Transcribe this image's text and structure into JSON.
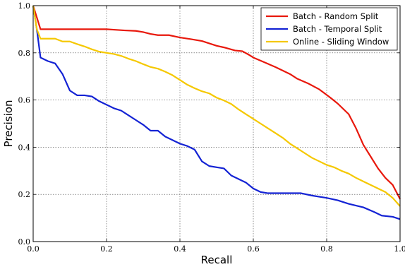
{
  "chart_data": {
    "type": "line",
    "xlabel": "Recall",
    "ylabel": "Precision",
    "xlim": [
      0.0,
      1.0
    ],
    "ylim": [
      0.0,
      1.0
    ],
    "x_ticks": [
      "0.0",
      "0.2",
      "0.4",
      "0.6",
      "0.8",
      "1.0"
    ],
    "y_ticks": [
      "0.0",
      "0.2",
      "0.4",
      "0.6",
      "0.8",
      "1.0"
    ],
    "grid": true,
    "legend_position": "top-right",
    "series": [
      {
        "name": "Batch - Random Split",
        "color": "#e8180c",
        "points": [
          [
            0.0,
            1.0
          ],
          [
            0.01,
            0.95
          ],
          [
            0.02,
            0.9
          ],
          [
            0.05,
            0.9
          ],
          [
            0.1,
            0.9
          ],
          [
            0.15,
            0.9
          ],
          [
            0.2,
            0.9
          ],
          [
            0.22,
            0.898
          ],
          [
            0.25,
            0.895
          ],
          [
            0.28,
            0.893
          ],
          [
            0.3,
            0.888
          ],
          [
            0.32,
            0.88
          ],
          [
            0.34,
            0.875
          ],
          [
            0.37,
            0.875
          ],
          [
            0.4,
            0.865
          ],
          [
            0.43,
            0.858
          ],
          [
            0.46,
            0.85
          ],
          [
            0.48,
            0.84
          ],
          [
            0.5,
            0.83
          ],
          [
            0.52,
            0.823
          ],
          [
            0.55,
            0.81
          ],
          [
            0.57,
            0.807
          ],
          [
            0.59,
            0.79
          ],
          [
            0.6,
            0.78
          ],
          [
            0.63,
            0.76
          ],
          [
            0.66,
            0.74
          ],
          [
            0.68,
            0.725
          ],
          [
            0.7,
            0.71
          ],
          [
            0.72,
            0.69
          ],
          [
            0.75,
            0.67
          ],
          [
            0.78,
            0.645
          ],
          [
            0.81,
            0.61
          ],
          [
            0.83,
            0.585
          ],
          [
            0.86,
            0.54
          ],
          [
            0.88,
            0.48
          ],
          [
            0.9,
            0.41
          ],
          [
            0.92,
            0.36
          ],
          [
            0.94,
            0.31
          ],
          [
            0.96,
            0.27
          ],
          [
            0.98,
            0.24
          ],
          [
            1.0,
            0.18
          ]
        ]
      },
      {
        "name": "Batch - Temporal Split",
        "color": "#1423d4",
        "points": [
          [
            0.0,
            1.0
          ],
          [
            0.01,
            0.9
          ],
          [
            0.02,
            0.78
          ],
          [
            0.04,
            0.765
          ],
          [
            0.06,
            0.755
          ],
          [
            0.08,
            0.71
          ],
          [
            0.1,
            0.64
          ],
          [
            0.12,
            0.62
          ],
          [
            0.14,
            0.62
          ],
          [
            0.16,
            0.615
          ],
          [
            0.18,
            0.595
          ],
          [
            0.2,
            0.58
          ],
          [
            0.22,
            0.565
          ],
          [
            0.24,
            0.555
          ],
          [
            0.26,
            0.535
          ],
          [
            0.28,
            0.515
          ],
          [
            0.3,
            0.495
          ],
          [
            0.32,
            0.47
          ],
          [
            0.34,
            0.47
          ],
          [
            0.36,
            0.445
          ],
          [
            0.38,
            0.43
          ],
          [
            0.4,
            0.415
          ],
          [
            0.42,
            0.405
          ],
          [
            0.44,
            0.39
          ],
          [
            0.46,
            0.34
          ],
          [
            0.48,
            0.32
          ],
          [
            0.5,
            0.315
          ],
          [
            0.52,
            0.31
          ],
          [
            0.54,
            0.28
          ],
          [
            0.56,
            0.265
          ],
          [
            0.58,
            0.25
          ],
          [
            0.6,
            0.225
          ],
          [
            0.62,
            0.21
          ],
          [
            0.64,
            0.205
          ],
          [
            0.66,
            0.205
          ],
          [
            0.7,
            0.205
          ],
          [
            0.73,
            0.205
          ],
          [
            0.76,
            0.195
          ],
          [
            0.8,
            0.185
          ],
          [
            0.83,
            0.175
          ],
          [
            0.86,
            0.16
          ],
          [
            0.9,
            0.145
          ],
          [
            0.93,
            0.125
          ],
          [
            0.95,
            0.11
          ],
          [
            0.98,
            0.105
          ],
          [
            1.0,
            0.095
          ]
        ]
      },
      {
        "name": "Online - Sliding Window",
        "color": "#f5c800",
        "points": [
          [
            0.0,
            1.0
          ],
          [
            0.01,
            0.9
          ],
          [
            0.02,
            0.86
          ],
          [
            0.04,
            0.86
          ],
          [
            0.06,
            0.86
          ],
          [
            0.08,
            0.848
          ],
          [
            0.1,
            0.848
          ],
          [
            0.12,
            0.837
          ],
          [
            0.14,
            0.827
          ],
          [
            0.16,
            0.815
          ],
          [
            0.18,
            0.805
          ],
          [
            0.2,
            0.8
          ],
          [
            0.22,
            0.795
          ],
          [
            0.24,
            0.787
          ],
          [
            0.26,
            0.775
          ],
          [
            0.28,
            0.765
          ],
          [
            0.3,
            0.752
          ],
          [
            0.32,
            0.74
          ],
          [
            0.34,
            0.733
          ],
          [
            0.36,
            0.72
          ],
          [
            0.38,
            0.705
          ],
          [
            0.4,
            0.685
          ],
          [
            0.42,
            0.665
          ],
          [
            0.44,
            0.65
          ],
          [
            0.46,
            0.637
          ],
          [
            0.48,
            0.628
          ],
          [
            0.5,
            0.61
          ],
          [
            0.52,
            0.598
          ],
          [
            0.54,
            0.583
          ],
          [
            0.56,
            0.56
          ],
          [
            0.58,
            0.54
          ],
          [
            0.6,
            0.52
          ],
          [
            0.62,
            0.5
          ],
          [
            0.64,
            0.48
          ],
          [
            0.66,
            0.46
          ],
          [
            0.68,
            0.44
          ],
          [
            0.7,
            0.415
          ],
          [
            0.72,
            0.395
          ],
          [
            0.74,
            0.375
          ],
          [
            0.76,
            0.355
          ],
          [
            0.78,
            0.34
          ],
          [
            0.8,
            0.325
          ],
          [
            0.82,
            0.315
          ],
          [
            0.84,
            0.3
          ],
          [
            0.86,
            0.288
          ],
          [
            0.88,
            0.27
          ],
          [
            0.9,
            0.255
          ],
          [
            0.92,
            0.24
          ],
          [
            0.94,
            0.225
          ],
          [
            0.96,
            0.21
          ],
          [
            0.98,
            0.185
          ],
          [
            1.0,
            0.15
          ]
        ]
      }
    ]
  }
}
